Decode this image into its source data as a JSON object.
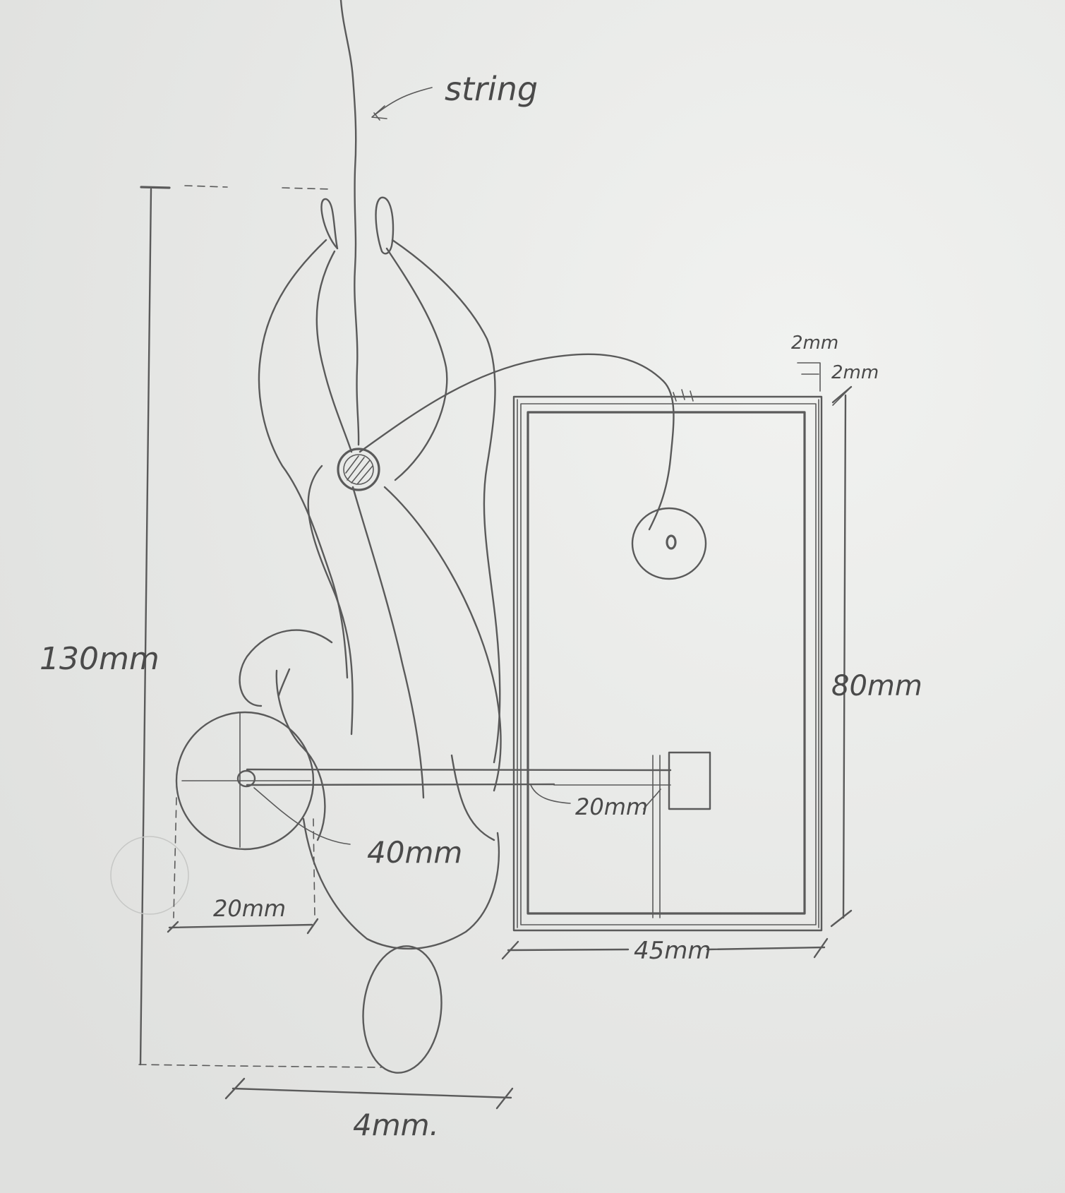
{
  "labels": {
    "string": "string",
    "height": "130mm",
    "box_height": "80mm",
    "box_width": "45mm",
    "wall_top": "2mm",
    "wall_side": "2mm",
    "wheel_diameter": "20mm",
    "rod_length": "40mm",
    "block_offset": "20mm",
    "base_width": "4mm."
  }
}
